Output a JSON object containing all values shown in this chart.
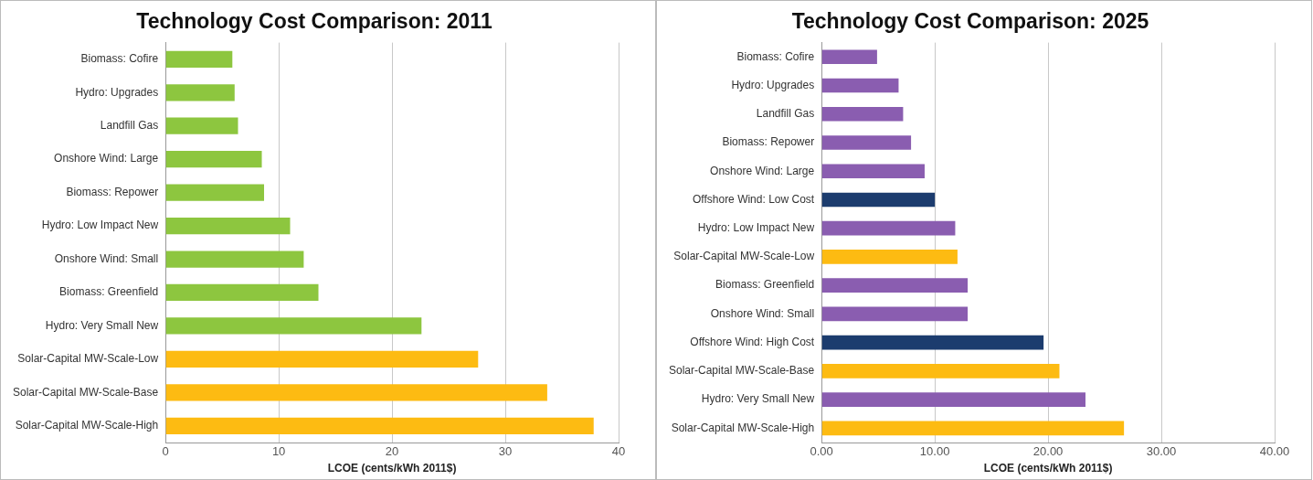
{
  "chart_data": [
    {
      "type": "bar",
      "orientation": "horizontal",
      "title": "Technology Cost Comparison: 2011",
      "xlabel": "LCOE (cents/kWh 2011$)",
      "categories": [
        "Biomass: Cofire",
        "Hydro: Upgrades",
        "Landfill Gas",
        "Onshore Wind: Large",
        "Biomass: Repower",
        "Hydro: Low Impact New",
        "Onshore Wind: Small",
        "Biomass: Greenfield",
        "Hydro: Very Small New",
        "Solar-Capital MW-Scale-Low",
        "Solar-Capital MW-Scale-Base",
        "Solar-Capital MW-Scale-High"
      ],
      "values": [
        5.9,
        6.1,
        6.4,
        8.5,
        8.7,
        11.0,
        12.2,
        13.5,
        22.6,
        27.6,
        33.7,
        37.8
      ],
      "colors": [
        "#8dc63f",
        "#8dc63f",
        "#8dc63f",
        "#8dc63f",
        "#8dc63f",
        "#8dc63f",
        "#8dc63f",
        "#8dc63f",
        "#8dc63f",
        "#fdbb12",
        "#fdbb12",
        "#fdbb12"
      ],
      "xlim": [
        0,
        40
      ],
      "xticks": [
        0,
        10,
        20,
        30,
        40
      ],
      "grid": "x",
      "legend": false
    },
    {
      "type": "bar",
      "orientation": "horizontal",
      "title": "Technology Cost Comparison: 2025",
      "xlabel": "LCOE (cents/kWh 2011$)",
      "categories": [
        "Biomass: Cofire",
        "Hydro: Upgrades",
        "Landfill Gas",
        "Biomass: Repower",
        "Onshore Wind: Large",
        "Offshore Wind: Low Cost",
        "Hydro: Low Impact New",
        "Solar-Capital MW-Scale-Low",
        "Biomass: Greenfield",
        "Onshore Wind: Small",
        "Offshore Wind: High Cost",
        "Solar-Capital MW-Scale-Base",
        "Hydro: Very Small New",
        "Solar-Capital MW-Scale-High"
      ],
      "values": [
        4.9,
        6.8,
        7.2,
        7.9,
        9.1,
        10.0,
        11.8,
        12.0,
        12.9,
        12.9,
        19.6,
        21.0,
        23.3,
        26.7
      ],
      "colors": [
        "#8a5db0",
        "#8a5db0",
        "#8a5db0",
        "#8a5db0",
        "#8a5db0",
        "#1c3c6e",
        "#8a5db0",
        "#fdbb12",
        "#8a5db0",
        "#8a5db0",
        "#1c3c6e",
        "#fdbb12",
        "#8a5db0",
        "#fdbb12"
      ],
      "xlim": [
        0,
        40
      ],
      "xticks": [
        {
          "value": 0,
          "label": "0.00"
        },
        {
          "value": 10,
          "label": "10.00"
        },
        {
          "value": 20,
          "label": "20.00"
        },
        {
          "value": 30,
          "label": "30.00"
        },
        {
          "value": 40,
          "label": "40.00"
        }
      ],
      "grid": "x",
      "legend": false
    }
  ]
}
